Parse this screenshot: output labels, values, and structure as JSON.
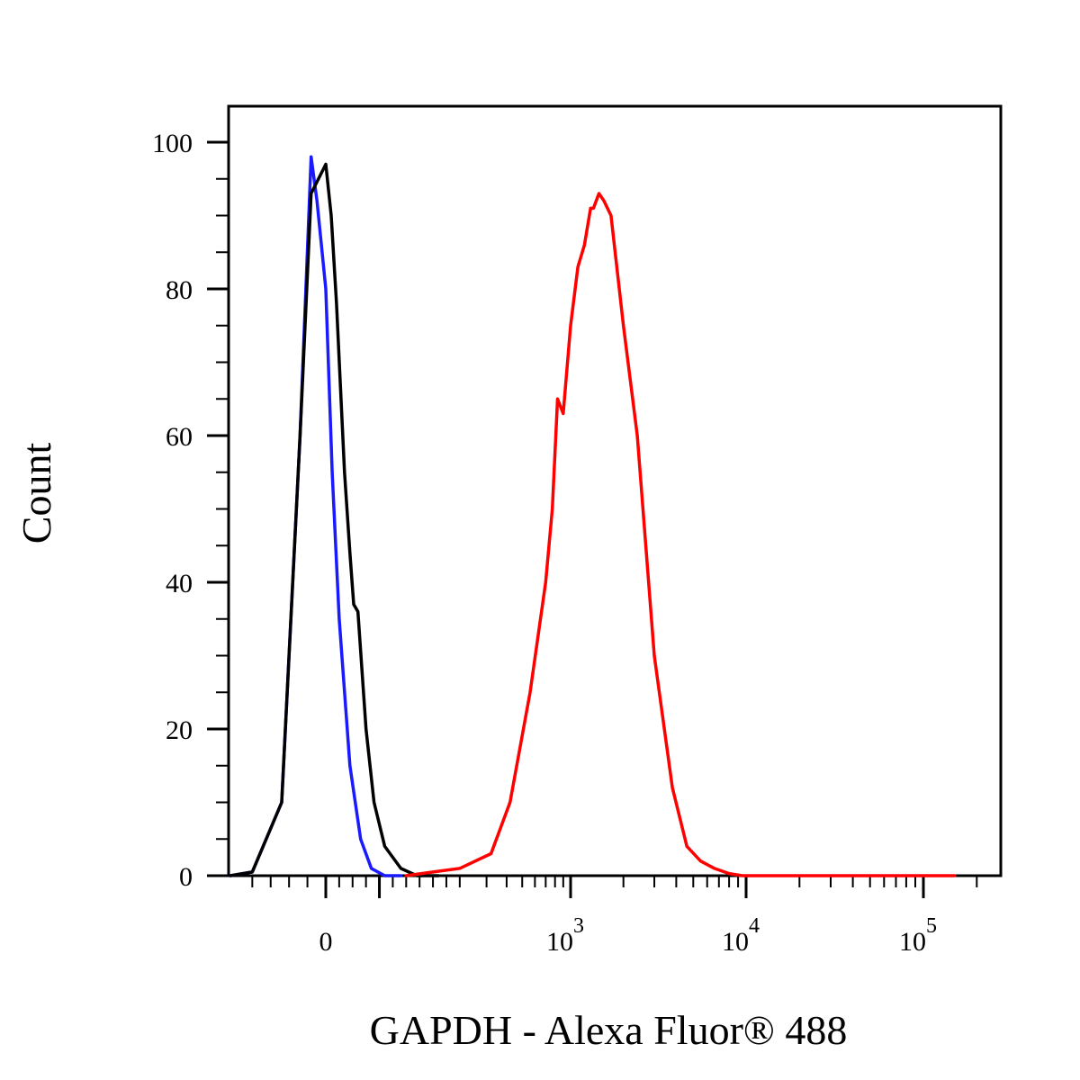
{
  "chart_data": {
    "type": "line",
    "title": "",
    "xlabel": "GAPDH - Alexa Fluor® 488",
    "ylabel": "Count",
    "x_scale": "biexponential",
    "ylim": [
      0,
      100
    ],
    "yticks": [
      0,
      20,
      40,
      60,
      80,
      100
    ],
    "xticks": [
      {
        "value": 0,
        "label": "0",
        "exp": ""
      },
      {
        "value": 1000,
        "label": "10",
        "exp": "3"
      },
      {
        "value": 10000,
        "label": "10",
        "exp": "4"
      },
      {
        "value": 100000,
        "label": "10",
        "exp": "5"
      }
    ],
    "legend": "none",
    "grid": false,
    "series": [
      {
        "color": "#1a1aff",
        "x": [
          -150,
          -100,
          -60,
          -35,
          -20,
          -12,
          0,
          12,
          25,
          45,
          65,
          85,
          110,
          140
        ],
        "y": [
          0,
          0.5,
          10,
          60,
          98,
          92,
          80,
          55,
          35,
          15,
          5,
          1,
          0,
          0
        ]
      },
      {
        "color": "#000000",
        "x": [
          -150,
          -100,
          -60,
          -35,
          -20,
          0,
          10,
          20,
          35,
          45,
          52,
          60,
          75,
          90,
          110,
          140,
          170,
          210
        ],
        "y": [
          0,
          0.5,
          10,
          60,
          93,
          97,
          90,
          78,
          55,
          44,
          37,
          36,
          20,
          10,
          4,
          1,
          0,
          0
        ]
      },
      {
        "color": "#ff0000",
        "x": [
          150,
          200,
          250,
          320,
          420,
          560,
          700,
          770,
          830,
          900,
          1000,
          1100,
          1200,
          1300,
          1350,
          1450,
          1550,
          1700,
          2000,
          2400,
          3000,
          3800,
          4600,
          5500,
          6600,
          8000,
          9500,
          11000,
          30000,
          150000
        ],
        "y": [
          0,
          0.5,
          1,
          3,
          10,
          25,
          40,
          50,
          65,
          63,
          75,
          83,
          86,
          91,
          91,
          93,
          92,
          90,
          75,
          60,
          30,
          12,
          4,
          2,
          1,
          0.3,
          0,
          0,
          0,
          0
        ]
      }
    ]
  }
}
